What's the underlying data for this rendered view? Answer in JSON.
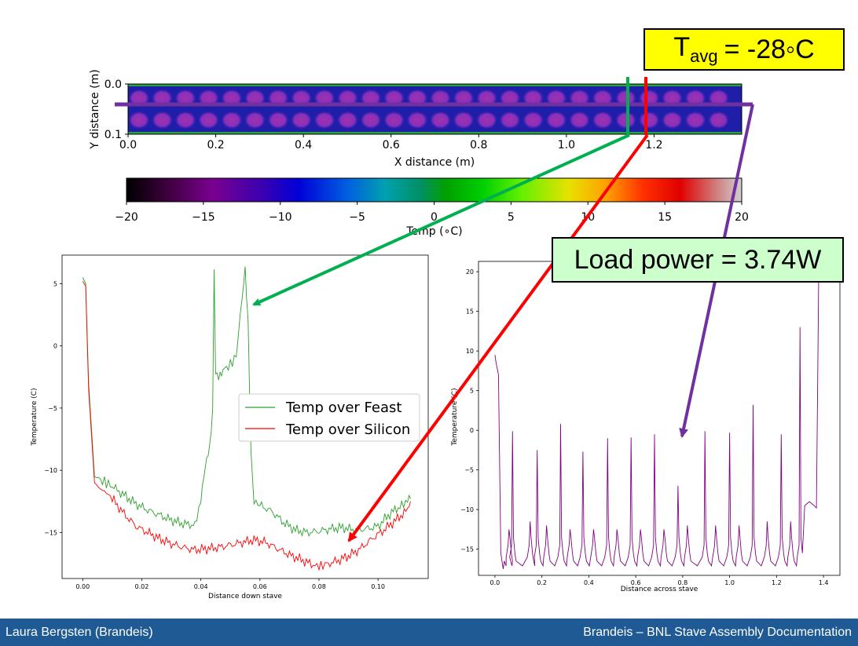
{
  "heatmap": {
    "xlabel": "X distance (m)",
    "ylabel": "Y distance (m)",
    "xticks": [
      "0.0",
      "0.2",
      "0.4",
      "0.6",
      "0.8",
      "1.0",
      "1.2"
    ],
    "yticks": [
      "0.0",
      "0.1"
    ],
    "colorbar_label": "Temp (∘C)",
    "colorbar_ticks": [
      "−20",
      "−15",
      "−10",
      "−5",
      "0",
      "5",
      "10",
      "15",
      "20"
    ]
  },
  "annotations": {
    "tavg_main": "T",
    "tavg_sub": "avg",
    "tavg_value": "= -28◦C",
    "load_power": "Load power = 3.74W"
  },
  "footer": {
    "left": "Laura Bergsten (Brandeis)",
    "right": "Brandeis – BNL Stave Assembly Documentation"
  },
  "colors": {
    "feast": "#2ca02c",
    "silicon": "#ff0000",
    "across": "#800080",
    "green_marker": "#00b050",
    "red_marker": "#ff0000",
    "purple_marker": "#7030a0",
    "footer_bg": "#1f5a94"
  },
  "chart_data": [
    {
      "type": "heatmap",
      "xlabel": "X distance (m)",
      "ylabel": "Y distance (m)",
      "xlim": [
        0,
        1.4
      ],
      "ylim": [
        0.1,
        0.0
      ],
      "colorbar": {
        "label": "Temp (∘C)",
        "range": [
          -20,
          20
        ],
        "ticks": [
          -20,
          -15,
          -10,
          -5,
          0,
          5,
          10,
          15,
          20
        ]
      }
    },
    {
      "type": "line",
      "xlabel": "Distance down stave",
      "ylabel": "Temperature (C)",
      "xlim": [
        -0.007,
        0.117
      ],
      "ylim": [
        -18.7,
        7.3
      ],
      "xticks": [
        0.0,
        0.02,
        0.04,
        0.06,
        0.08,
        0.1
      ],
      "xtick_labels": [
        "0.00",
        "0.02",
        "0.04",
        "0.06",
        "0.08",
        "0.10"
      ],
      "yticks": [
        5,
        0,
        -5,
        -10,
        -15
      ],
      "ytick_labels": [
        "5",
        "0",
        "−5",
        "−10",
        "−15"
      ],
      "legend": "center-right",
      "series": [
        {
          "name": "Temp over Feast",
          "x": [
            0,
            0.001,
            0.002,
            0.004,
            0.006,
            0.008,
            0.01,
            0.014,
            0.018,
            0.022,
            0.026,
            0.03,
            0.034,
            0.038,
            0.04,
            0.041,
            0.042,
            0.043,
            0.044,
            0.0445,
            0.045,
            0.046,
            0.047,
            0.048,
            0.05,
            0.052,
            0.054,
            0.055,
            0.056,
            0.057,
            0.058,
            0.06,
            0.064,
            0.068,
            0.072,
            0.076,
            0.08,
            0.084,
            0.088,
            0.092,
            0.096,
            0.1,
            0.104,
            0.108,
            0.11,
            0.111
          ],
          "y": [
            5.5,
            5.0,
            -3.0,
            -10.5,
            -10.8,
            -11.0,
            -11.3,
            -12.0,
            -12.7,
            -13.2,
            -13.6,
            -14.0,
            -14.3,
            -14.4,
            -12.5,
            -10.5,
            -9.0,
            -8.0,
            -5.0,
            6.4,
            -2.0,
            -2.4,
            -2.2,
            -1.9,
            -1.5,
            -0.8,
            4.0,
            6.4,
            2.0,
            -8.5,
            -12.5,
            -12.8,
            -13.3,
            -14.2,
            -14.8,
            -15.0,
            -14.9,
            -14.7,
            -14.6,
            -14.8,
            -14.7,
            -14.5,
            -13.5,
            -12.8,
            -12.5,
            -12.3
          ]
        },
        {
          "name": "Temp over Silicon",
          "x": [
            0,
            0.001,
            0.002,
            0.004,
            0.006,
            0.008,
            0.01,
            0.014,
            0.018,
            0.022,
            0.026,
            0.03,
            0.034,
            0.038,
            0.042,
            0.046,
            0.05,
            0.054,
            0.058,
            0.062,
            0.066,
            0.07,
            0.074,
            0.078,
            0.08,
            0.082,
            0.086,
            0.09,
            0.094,
            0.098,
            0.102,
            0.106,
            0.11,
            0.111
          ],
          "y": [
            5.2,
            4.8,
            -3.5,
            -11.0,
            -11.5,
            -11.8,
            -12.3,
            -13.5,
            -14.5,
            -15.0,
            -15.5,
            -15.9,
            -16.2,
            -16.4,
            -16.3,
            -16.2,
            -16.0,
            -15.8,
            -15.6,
            -15.8,
            -16.3,
            -16.8,
            -17.2,
            -17.6,
            -17.7,
            -17.6,
            -17.3,
            -16.9,
            -16.3,
            -15.5,
            -14.8,
            -14.0,
            -13.2,
            -12.5
          ]
        }
      ]
    },
    {
      "type": "line",
      "xlabel": "Distance across stave",
      "ylabel": "Temperature (C)",
      "xlim": [
        -0.07,
        1.47
      ],
      "ylim": [
        -18.3,
        21.3
      ],
      "xticks": [
        0.0,
        0.2,
        0.4,
        0.6,
        0.8,
        1.0,
        1.2,
        1.4
      ],
      "xtick_labels": [
        "0.0",
        "0.2",
        "0.4",
        "0.6",
        "0.8",
        "1.0",
        "1.2",
        "1.4"
      ],
      "yticks": [
        20,
        15,
        10,
        5,
        0,
        -5,
        -10,
        -15
      ],
      "ytick_labels": [
        "20",
        "15",
        "10",
        "5",
        "0",
        "−5",
        "−10",
        "−15"
      ],
      "series": [
        {
          "name": "",
          "baseline": -16.5,
          "start": {
            "x": [
              0.0,
              0.005,
              0.015,
              0.025,
              0.035
            ],
            "y": [
              9.5,
              8.5,
              7.0,
              -15.5,
              -17.5
            ]
          },
          "peaks": [
            {
              "x": 0.06,
              "y": -12.5
            },
            {
              "x": 0.075,
              "y": -0.1
            },
            {
              "x": 0.15,
              "y": -11.5
            },
            {
              "x": 0.18,
              "y": -2.5
            },
            {
              "x": 0.22,
              "y": -12.0
            },
            {
              "x": 0.28,
              "y": 0.8
            },
            {
              "x": 0.32,
              "y": -12.5
            },
            {
              "x": 0.375,
              "y": -2.7
            },
            {
              "x": 0.42,
              "y": -12.5
            },
            {
              "x": 0.48,
              "y": -1.0
            },
            {
              "x": 0.52,
              "y": -12.5
            },
            {
              "x": 0.58,
              "y": -0.9
            },
            {
              "x": 0.62,
              "y": -12.5
            },
            {
              "x": 0.68,
              "y": -0.5
            },
            {
              "x": 0.72,
              "y": -12.5
            },
            {
              "x": 0.78,
              "y": -7.0
            },
            {
              "x": 0.82,
              "y": -12.0
            },
            {
              "x": 0.895,
              "y": -0.1
            },
            {
              "x": 0.94,
              "y": -12.0
            },
            {
              "x": 1.0,
              "y": -0.3
            },
            {
              "x": 1.04,
              "y": -12.0
            },
            {
              "x": 1.1,
              "y": 3.2
            },
            {
              "x": 1.16,
              "y": -11.5
            },
            {
              "x": 1.22,
              "y": -0.5
            },
            {
              "x": 1.26,
              "y": -11.5
            },
            {
              "x": 1.3,
              "y": 13.0
            }
          ],
          "end": {
            "x": [
              1.32,
              1.34,
              1.36,
              1.37,
              1.38
            ],
            "y": [
              -9.5,
              -9.0,
              -9.5,
              -9.8,
              20.5
            ]
          }
        }
      ]
    }
  ]
}
